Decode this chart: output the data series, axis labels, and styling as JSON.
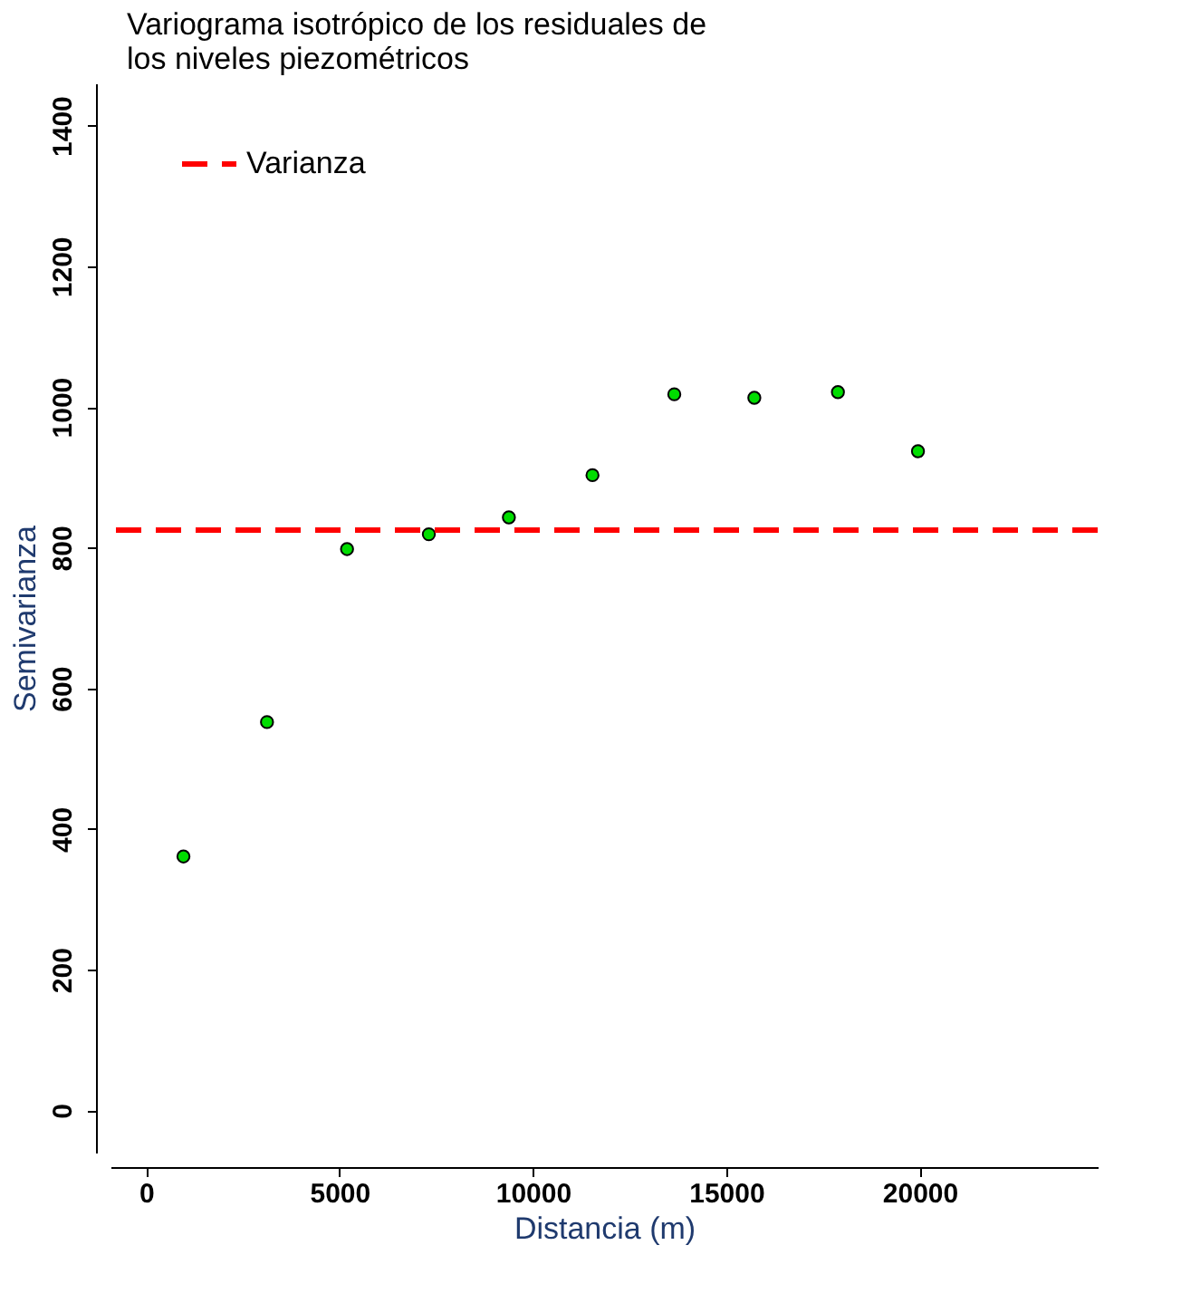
{
  "chart_data": {
    "type": "scatter",
    "title": "Variograma isotrópico de los residuales de los niveles piezométricos",
    "xlabel": "Distancia (m)",
    "ylabel": "Semivarianza",
    "x": [
      966,
      3126,
      5195,
      7310,
      9379,
      11540,
      13655,
      15724,
      17885,
      19954
    ],
    "series": [
      {
        "color": "#00dd00",
        "values": [
          361,
          552,
          798,
          819,
          843,
          903,
          1018,
          1013,
          1021,
          937
        ]
      }
    ],
    "xlim": [
      -920,
      24600
    ],
    "ylim": [
      -60,
      1460
    ],
    "xticks": [
      0,
      5000,
      10000,
      15000,
      20000
    ],
    "yticks": [
      0,
      200,
      400,
      600,
      800,
      1000,
      1200,
      1400
    ],
    "ref_lines": [
      {
        "axis": "y",
        "value": 825,
        "label": "Varianza",
        "color": "#ff0000",
        "line_style": "dashed"
      }
    ],
    "legend": "top left",
    "grid": false,
    "marker": "circle"
  }
}
